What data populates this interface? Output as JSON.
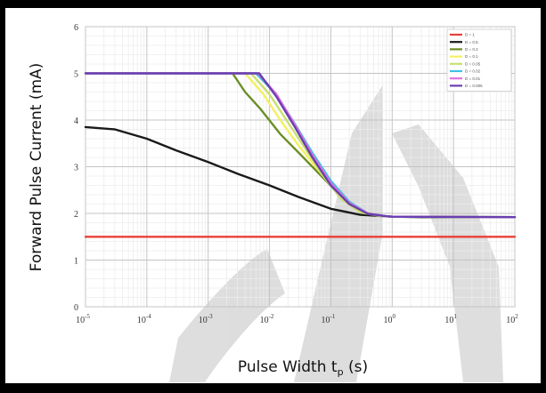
{
  "chart_data": {
    "type": "line",
    "xlabel": "Pulse Width t",
    "xlabel_subscript": "p",
    "xlabel_unit": " (s)",
    "ylabel": "Forward Pulse Current (mA)",
    "x_scale": "log",
    "xlim": [
      1e-05,
      100
    ],
    "ylim": [
      0,
      6
    ],
    "x_ticks": [
      {
        "base": "10",
        "exp": "-5",
        "value": 1e-05
      },
      {
        "base": "10",
        "exp": "-4",
        "value": 0.0001
      },
      {
        "base": "10",
        "exp": "-3",
        "value": 0.001
      },
      {
        "base": "10",
        "exp": "-2",
        "value": 0.01
      },
      {
        "base": "10",
        "exp": "-1",
        "value": 0.1
      },
      {
        "base": "10",
        "exp": "0",
        "value": 1
      },
      {
        "base": "10",
        "exp": "1",
        "value": 10
      },
      {
        "base": "10",
        "exp": "2",
        "value": 100
      }
    ],
    "y_ticks": [
      "0",
      "1",
      "2",
      "3",
      "4",
      "5",
      "6"
    ],
    "grid": true,
    "legend_position": "top-right",
    "series": [
      {
        "name": "D = 1",
        "color": "#e8403a",
        "x": [
          1e-05,
          100
        ],
        "y": [
          1.5,
          1.5
        ]
      },
      {
        "name": "D = 0.5",
        "color": "#1a1a1a",
        "x": [
          1e-05,
          3e-05,
          0.0001,
          0.0003,
          0.001,
          0.003,
          0.01,
          0.03,
          0.1,
          0.3,
          1,
          3,
          10,
          100
        ],
        "y": [
          3.85,
          3.8,
          3.6,
          3.35,
          3.1,
          2.85,
          2.6,
          2.35,
          2.1,
          1.97,
          1.93,
          1.92,
          1.92,
          1.92
        ]
      },
      {
        "name": "D = 0.2",
        "color": "#6b8e23",
        "x": [
          0.0025,
          0.004,
          0.007,
          0.015,
          0.03,
          0.07,
          0.15,
          0.3,
          0.6,
          1,
          100
        ],
        "y": [
          5.0,
          4.6,
          4.25,
          3.7,
          3.3,
          2.8,
          2.35,
          2.05,
          1.95,
          1.93,
          1.92
        ]
      },
      {
        "name": "D = 0.1",
        "color": "#f4f060",
        "x": [
          1e-05,
          0.004,
          0.008,
          0.015,
          0.03,
          0.07,
          0.15,
          0.3,
          0.6,
          1,
          100
        ],
        "y": [
          5.0,
          5.0,
          4.55,
          4.0,
          3.45,
          2.85,
          2.35,
          2.05,
          1.95,
          1.93,
          1.92
        ]
      },
      {
        "name": "D = 0.05",
        "color": "#c8e070",
        "x": [
          1e-05,
          0.005,
          0.01,
          0.02,
          0.04,
          0.08,
          0.15,
          0.3,
          0.6,
          1,
          100
        ],
        "y": [
          5.0,
          5.0,
          4.55,
          3.95,
          3.35,
          2.75,
          2.3,
          2.02,
          1.95,
          1.93,
          1.92
        ]
      },
      {
        "name": "D = 0.02",
        "color": "#40c0e0",
        "x": [
          1e-05,
          0.006,
          0.012,
          0.025,
          0.05,
          0.1,
          0.2,
          0.4,
          0.8,
          1,
          100
        ],
        "y": [
          5.0,
          5.0,
          4.6,
          3.95,
          3.3,
          2.7,
          2.25,
          2.0,
          1.94,
          1.93,
          1.92
        ]
      },
      {
        "name": "D = 0.01",
        "color": "#e070e0",
        "x": [
          1e-05,
          0.0065,
          0.013,
          0.026,
          0.05,
          0.1,
          0.2,
          0.4,
          0.8,
          1,
          100
        ],
        "y": [
          5.0,
          5.0,
          4.55,
          3.9,
          3.25,
          2.65,
          2.22,
          2.0,
          1.94,
          1.93,
          1.92
        ]
      },
      {
        "name": "D = 0.005",
        "color": "#6a3fb0",
        "x": [
          1e-05,
          0.0068,
          0.013,
          0.026,
          0.05,
          0.1,
          0.2,
          0.4,
          0.8,
          1,
          100
        ],
        "y": [
          5.0,
          5.0,
          4.5,
          3.85,
          3.2,
          2.6,
          2.2,
          1.99,
          1.94,
          1.93,
          1.92
        ]
      }
    ]
  }
}
